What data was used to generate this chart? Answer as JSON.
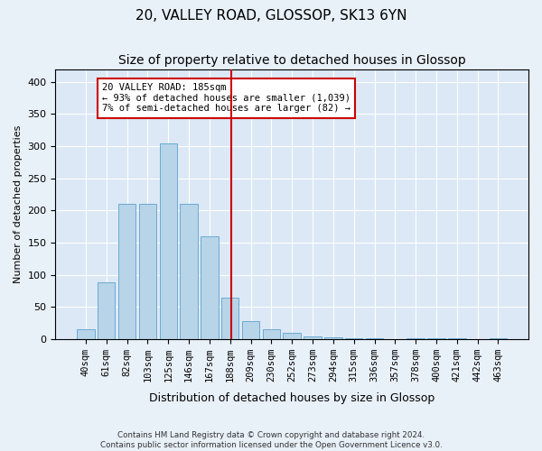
{
  "title": "20, VALLEY ROAD, GLOSSOP, SK13 6YN",
  "subtitle": "Size of property relative to detached houses in Glossop",
  "xlabel": "Distribution of detached houses by size in Glossop",
  "ylabel": "Number of detached properties",
  "bar_labels": [
    "40sqm",
    "61sqm",
    "82sqm",
    "103sqm",
    "125sqm",
    "146sqm",
    "167sqm",
    "188sqm",
    "209sqm",
    "230sqm",
    "252sqm",
    "273sqm",
    "294sqm",
    "315sqm",
    "336sqm",
    "357sqm",
    "378sqm",
    "400sqm",
    "421sqm",
    "442sqm",
    "463sqm"
  ],
  "bar_values": [
    15,
    88,
    210,
    210,
    305,
    210,
    160,
    65,
    28,
    15,
    10,
    5,
    3,
    1,
    2,
    0,
    2,
    1,
    2,
    0,
    1
  ],
  "bar_color": "#b8d4e8",
  "bar_edge_color": "#6aaad4",
  "vline_x_idx": 7,
  "vline_color": "#cc0000",
  "annotation_text": "20 VALLEY ROAD: 185sqm\n← 93% of detached houses are smaller (1,039)\n7% of semi-detached houses are larger (82) →",
  "annotation_box_facecolor": "#ffffff",
  "annotation_box_edgecolor": "#cc0000",
  "ylim": [
    0,
    420
  ],
  "yticks": [
    0,
    50,
    100,
    150,
    200,
    250,
    300,
    350,
    400
  ],
  "fig_facecolor": "#e8f0f8",
  "ax_facecolor": "#dce8f5",
  "footer_line1": "Contains HM Land Registry data © Crown copyright and database right 2024.",
  "footer_line2": "Contains public sector information licensed under the Open Government Licence v3.0.",
  "title_fontsize": 11,
  "subtitle_fontsize": 10,
  "grid_color": "#ffffff"
}
